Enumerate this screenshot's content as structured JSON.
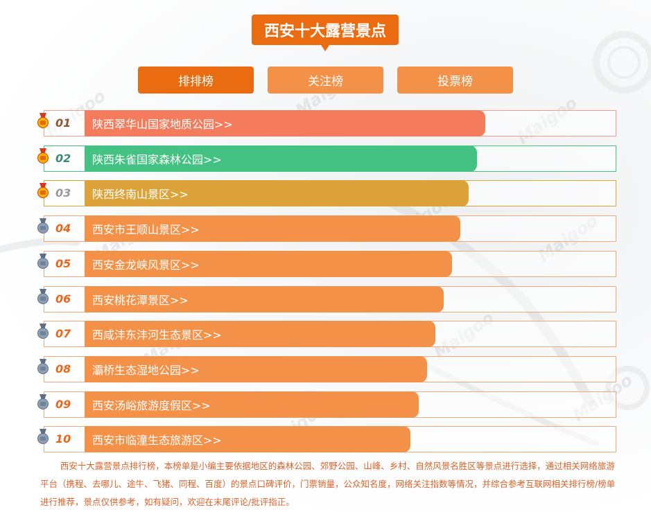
{
  "title": "西安十大露营景点",
  "tabs": [
    {
      "label": "排排榜",
      "active": true
    },
    {
      "label": "关注榜",
      "active": false
    },
    {
      "label": "投票榜",
      "active": false
    }
  ],
  "colors": {
    "accent": "#ea6b10",
    "tab_inactive": "#f39148",
    "rank1": "#f47c5d",
    "rank2": "#43c283",
    "rank3": "#dba33a",
    "rest": "#f39148"
  },
  "ranking": [
    {
      "rank": "01",
      "name": "陕西翠华山国家地质公园>>",
      "medal": "gold",
      "color": "#f47c5d",
      "frame": "#f0a08a",
      "num_color": "#8a5a35"
    },
    {
      "rank": "02",
      "name": "陕西朱雀国家森林公园>>",
      "medal": "gold",
      "color": "#43c283",
      "frame": "#43c283",
      "num_color": "#3a8a7a"
    },
    {
      "rank": "03",
      "name": "陕西终南山景区>>",
      "medal": "gold",
      "color": "#dba33a",
      "frame": "#dba33a",
      "num_color": "#9a9a9a"
    },
    {
      "rank": "04",
      "name": "西安市王顺山景区>>",
      "medal": "silver",
      "color": "#f39148",
      "frame": "#f0a878",
      "num_color": "#e9661a"
    },
    {
      "rank": "05",
      "name": "西安金龙峡风景区>>",
      "medal": "silver",
      "color": "#f39148",
      "frame": "#f0a878",
      "num_color": "#e9661a"
    },
    {
      "rank": "06",
      "name": "西安桃花潭景区>>",
      "medal": "silver",
      "color": "#f39148",
      "frame": "#f0a878",
      "num_color": "#e9661a"
    },
    {
      "rank": "07",
      "name": "西咸沣东沣河生态景区>>",
      "medal": "silver",
      "color": "#f39148",
      "frame": "#f0a878",
      "num_color": "#e9661a"
    },
    {
      "rank": "08",
      "name": "灞桥生态湿地公园>>",
      "medal": "silver",
      "color": "#f39148",
      "frame": "#f0a878",
      "num_color": "#e9661a"
    },
    {
      "rank": "09",
      "name": "西安汤峪旅游度假区>>",
      "medal": "silver",
      "color": "#f39148",
      "frame": "#f0a878",
      "num_color": "#e9661a"
    },
    {
      "rank": "10",
      "name": "西安市临潼生态旅游区>>",
      "medal": "silver",
      "color": "#f39148",
      "frame": "#f0a878",
      "num_color": "#e9661a"
    }
  ],
  "watermark": "Maigoo",
  "description": "西安十大露营景点排行榜，本榜单是小编主要依据地区的森林公园、郊野公园、山峰、乡村、自然风景名胜区等景点进行选择，通过相关网络旅游平台（携程、去哪儿、途牛、飞猪、同程、百度）的景点口碑评价，门票销量，公众知名度，网络关注指数等情况，并综合参考互联网相关排行榜/榜单进行推荐，景点仅供参考，如有疑问，欢迎在末尾评论/批评指正。"
}
